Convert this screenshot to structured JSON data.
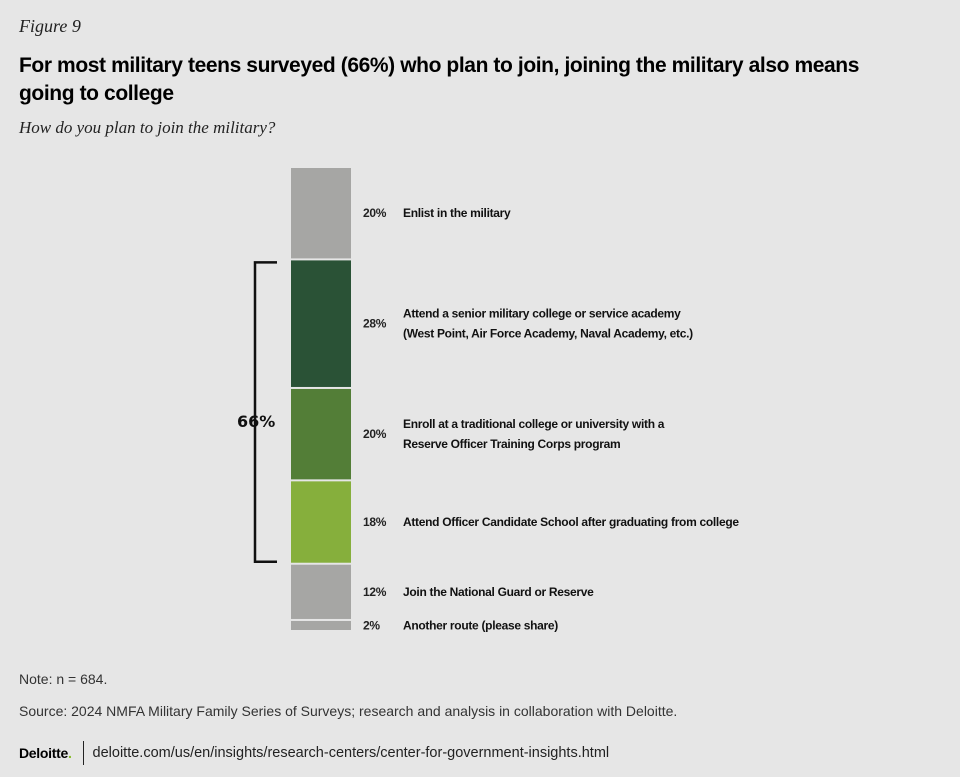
{
  "figure_label": "Figure 9",
  "chart_data": {
    "type": "bar",
    "layout": "stacked-single-column",
    "title": "For most military teens surveyed (66%) who plan to join, joining the military also means going to college",
    "subtitle": "How do you plan to join the military?",
    "unit": "%",
    "categories": [
      "Enlist in the military",
      "Attend a senior military college or service academy (West Point, Air Force Academy, Naval Academy, etc.)",
      "Enroll at a traditional college or university with a Reserve Officer Training Corps program",
      "Attend Officer Candidate School after graduating from college",
      "Join the National Guard or Reserve",
      "Another route (please share)"
    ],
    "label_lines": [
      [
        "Enlist in the military"
      ],
      [
        "Attend a senior military college or service academy",
        "(West Point, Air Force Academy, Naval Academy, etc.)"
      ],
      [
        "Enroll at a traditional college or university with a",
        "Reserve Officer Training Corps program"
      ],
      [
        "Attend Officer Candidate School after graduating from college"
      ],
      [
        "Join the National Guard or Reserve"
      ],
      [
        "Another route (please share)"
      ]
    ],
    "values": [
      20,
      28,
      20,
      18,
      12,
      2
    ],
    "value_labels": [
      "20%",
      "28%",
      "20%",
      "18%",
      "12%",
      "2%"
    ],
    "colors": [
      "#a6a6a4",
      "#2a5236",
      "#537e37",
      "#86af3c",
      "#a6a6a4",
      "#a6a6a4"
    ],
    "bracket": {
      "label": "66%",
      "from_index": 1,
      "to_index": 3
    }
  },
  "note": "Note: n = 684.",
  "source": "Source: 2024 NMFA Military Family Series of Surveys; research and analysis in collaboration with Deloitte.",
  "footer": {
    "logo": "Deloitte",
    "logo_dot": ".",
    "url": "deloitte.com/us/en/insights/research-centers/center-for-government-insights.html"
  }
}
